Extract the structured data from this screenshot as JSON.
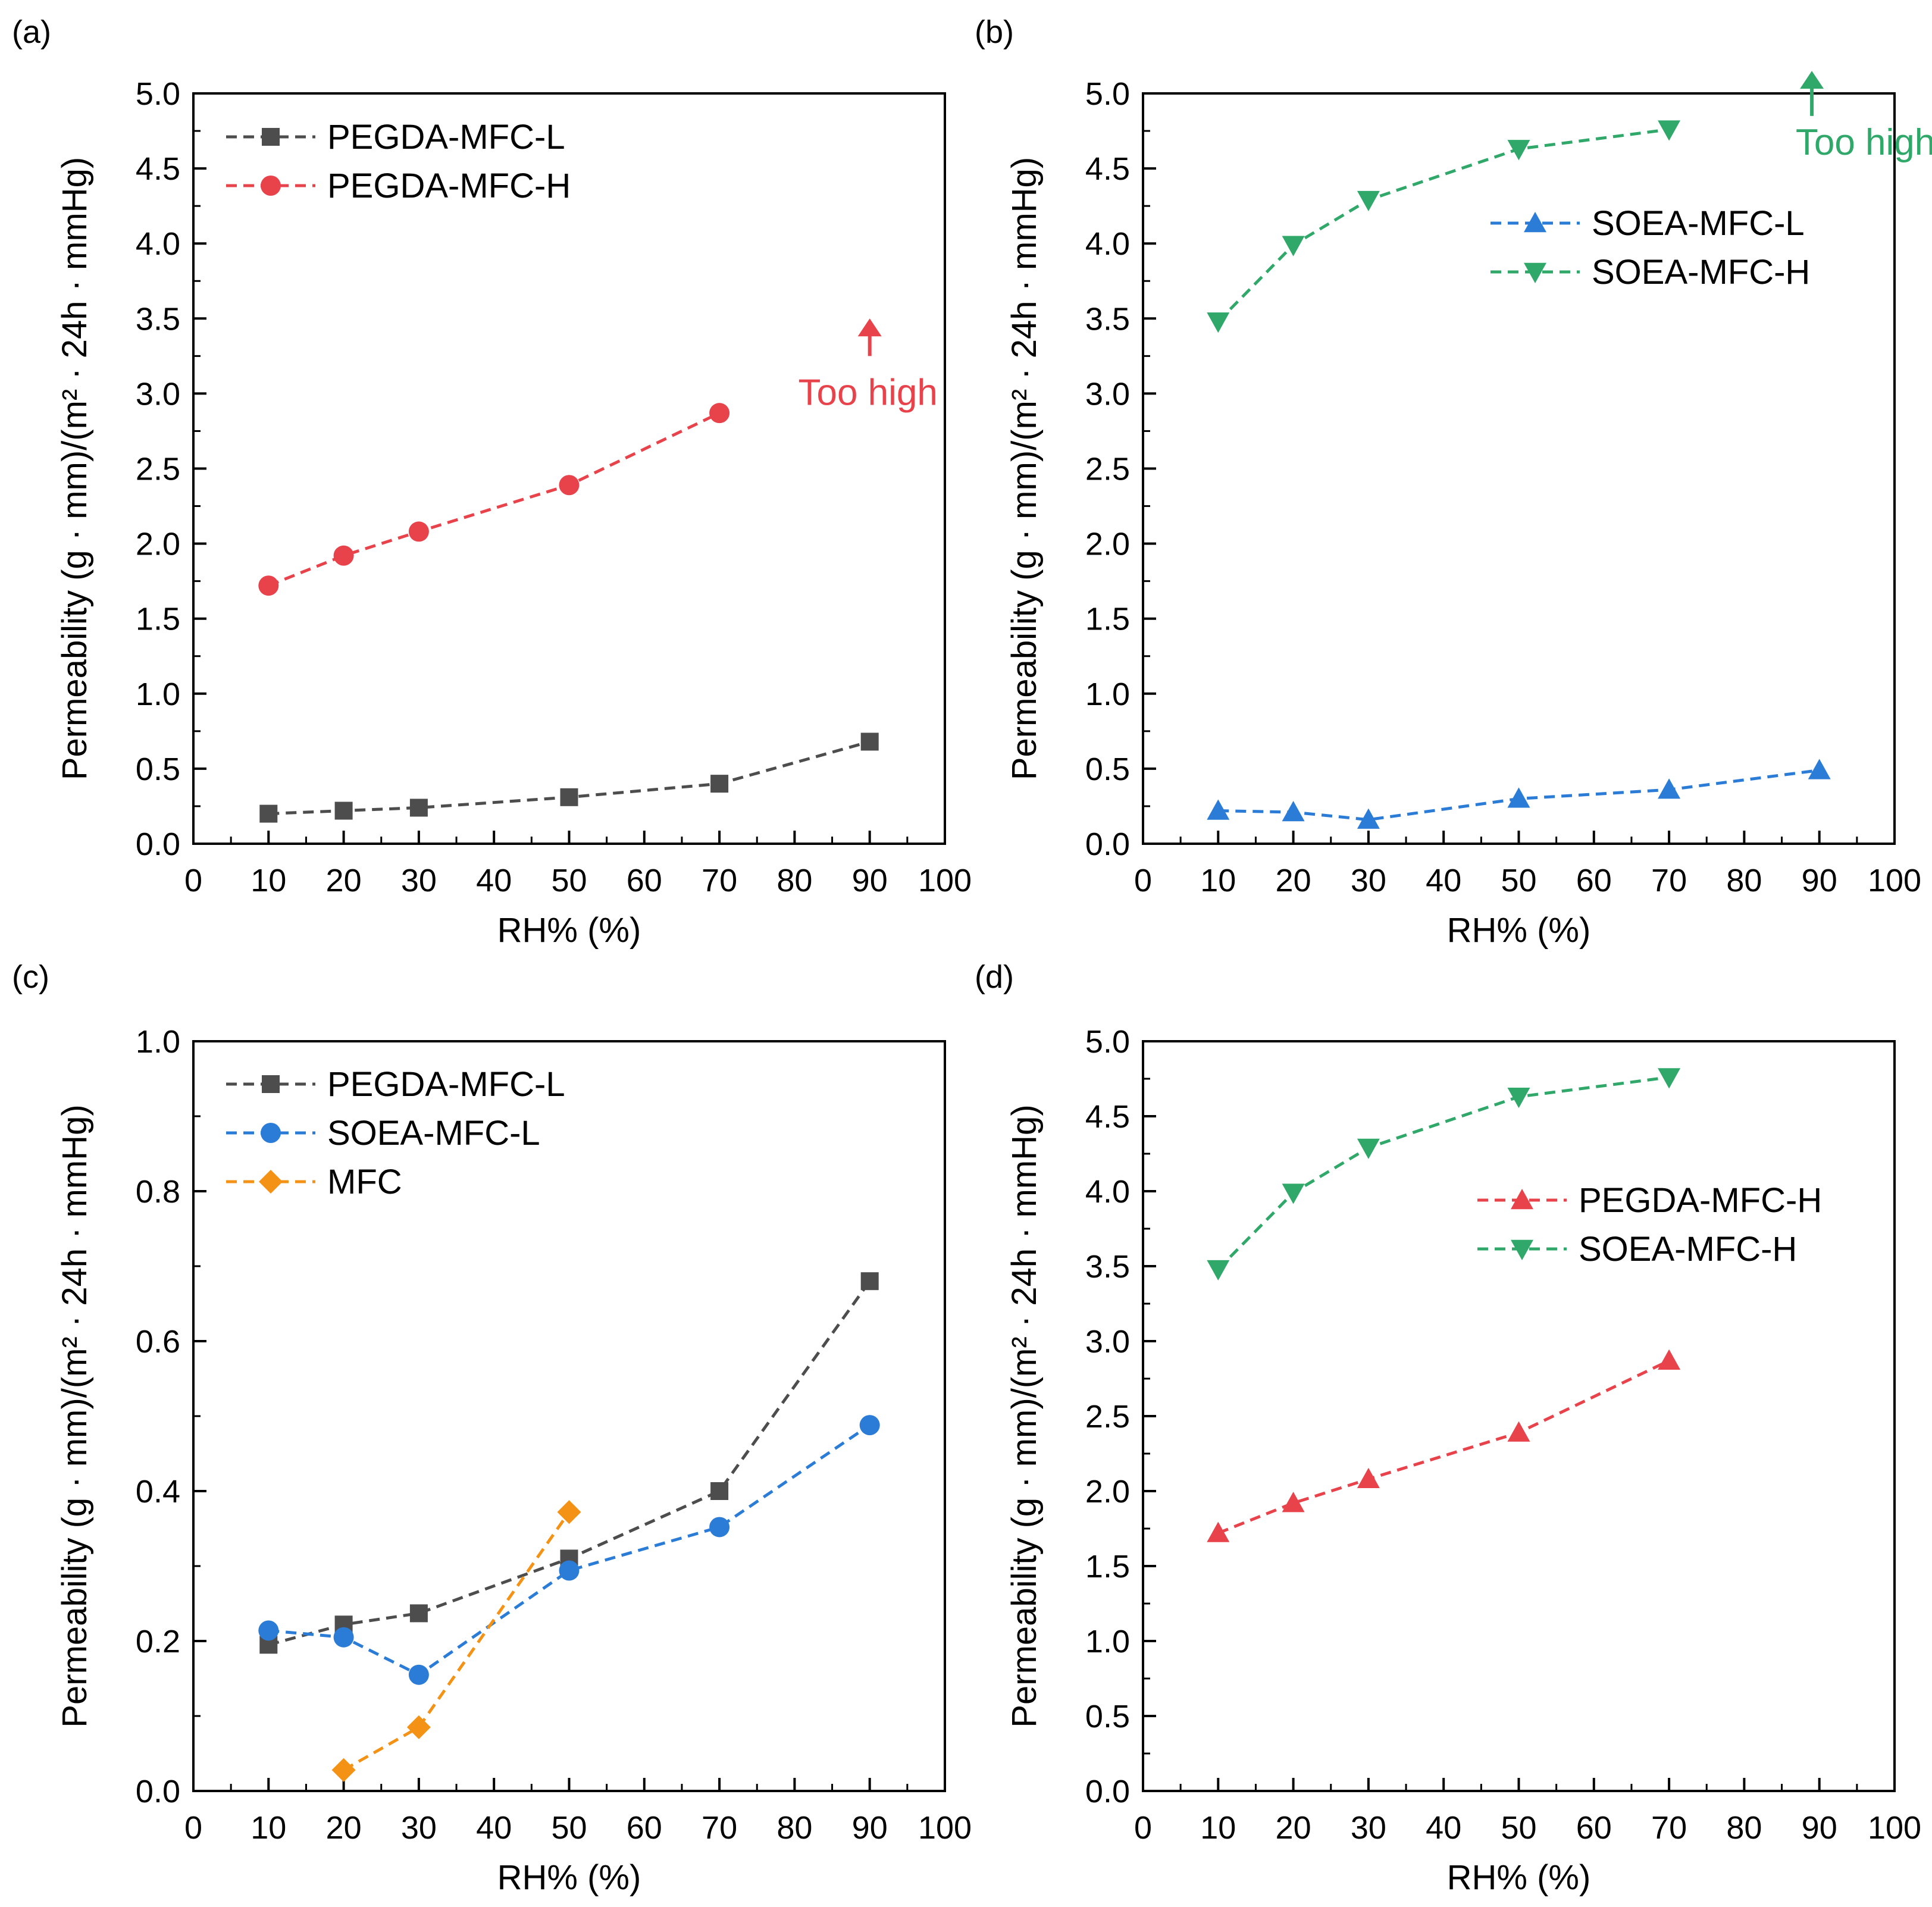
{
  "colors": {
    "black": "#000000",
    "gray": "#4d4d4d",
    "red": "#e8434b",
    "blue": "#2b7cd6",
    "green": "#2fa869",
    "orange": "#f39214"
  },
  "chart_data": [
    {
      "panel": "(a)",
      "type": "line",
      "xlabel": "RH% (%)",
      "ylabel": "Permeability (g · mm)/(m² · 24h · mmHg)",
      "xlim": [
        0,
        100
      ],
      "ylim": [
        0,
        5.0
      ],
      "xticks": [
        "0",
        "10",
        "20",
        "30",
        "40",
        "50",
        "60",
        "70",
        "80",
        "90",
        "100"
      ],
      "yticks": [
        "0.0",
        "0.5",
        "1.0",
        "1.5",
        "2.0",
        "2.5",
        "3.0",
        "3.5",
        "4.0",
        "4.5",
        "5.0"
      ],
      "legend_position": "top-left",
      "series": [
        {
          "name": "PEGDA-MFC-L",
          "marker": "square",
          "color": "#4d4d4d",
          "x": [
            10,
            20,
            30,
            50,
            70,
            90
          ],
          "values": [
            0.2,
            0.22,
            0.24,
            0.31,
            0.4,
            0.68
          ]
        },
        {
          "name": "PEGDA-MFC-H",
          "marker": "circle",
          "color": "#e8434b",
          "x": [
            10,
            20,
            30,
            50,
            70
          ],
          "values": [
            1.72,
            1.92,
            2.08,
            2.39,
            2.87
          ]
        }
      ],
      "annotation": {
        "text": "Too high",
        "color": "#e8434b",
        "at_x": 90,
        "arrow_from": 3.25,
        "arrow_to": 3.5
      }
    },
    {
      "panel": "(b)",
      "type": "line",
      "xlabel": "RH% (%)",
      "ylabel": "Permeability (g · mm)/(m² · 24h · mmHg)",
      "xlim": [
        0,
        100
      ],
      "ylim": [
        0,
        5.0
      ],
      "xticks": [
        "0",
        "10",
        "20",
        "30",
        "40",
        "50",
        "60",
        "70",
        "80",
        "90",
        "100"
      ],
      "yticks": [
        "0.0",
        "0.5",
        "1.0",
        "1.5",
        "2.0",
        "2.5",
        "3.0",
        "3.5",
        "4.0",
        "4.5",
        "5.0"
      ],
      "legend_position": "upper-right",
      "series": [
        {
          "name": "SOEA-MFC-L",
          "marker": "triangle-up",
          "color": "#2b7cd6",
          "x": [
            10,
            20,
            30,
            50,
            70,
            90
          ],
          "values": [
            0.22,
            0.21,
            0.16,
            0.3,
            0.36,
            0.49
          ]
        },
        {
          "name": "SOEA-MFC-H",
          "marker": "triangle-down",
          "color": "#2fa869",
          "x": [
            10,
            20,
            30,
            50,
            70
          ],
          "values": [
            3.48,
            3.99,
            4.29,
            4.63,
            4.76
          ]
        }
      ],
      "annotation": {
        "text": "Too high",
        "color": "#2fa869",
        "at_x": 89,
        "arrow_from": 4.85,
        "arrow_to": 5.15
      }
    },
    {
      "panel": "(c)",
      "type": "line",
      "xlabel": "RH% (%)",
      "ylabel": "Permeability (g · mm)/(m² · 24h · mmHg)",
      "xlim": [
        0,
        100
      ],
      "ylim": [
        0,
        1.0
      ],
      "xticks": [
        "0",
        "10",
        "20",
        "30",
        "40",
        "50",
        "60",
        "70",
        "80",
        "90",
        "100"
      ],
      "yticks": [
        "0.0",
        "0.2",
        "0.4",
        "0.6",
        "0.8",
        "1.0"
      ],
      "legend_position": "top-left",
      "series": [
        {
          "name": "PEGDA-MFC-L",
          "marker": "square",
          "color": "#4d4d4d",
          "x": [
            10,
            20,
            30,
            50,
            70,
            90
          ],
          "values": [
            0.195,
            0.222,
            0.237,
            0.31,
            0.4,
            0.68
          ]
        },
        {
          "name": "SOEA-MFC-L",
          "marker": "circle",
          "color": "#2b7cd6",
          "x": [
            10,
            20,
            30,
            50,
            70,
            90
          ],
          "values": [
            0.214,
            0.205,
            0.155,
            0.294,
            0.352,
            0.488
          ]
        },
        {
          "name": "MFC",
          "marker": "diamond",
          "color": "#f39214",
          "x": [
            20,
            30,
            50
          ],
          "values": [
            0.028,
            0.085,
            0.372
          ]
        }
      ]
    },
    {
      "panel": "(d)",
      "type": "line",
      "xlabel": "RH% (%)",
      "ylabel": "Permeability (g · mm)/(m² · 24h · mmHg)",
      "xlim": [
        0,
        100
      ],
      "ylim": [
        0,
        5.0
      ],
      "xticks": [
        "0",
        "10",
        "20",
        "30",
        "40",
        "50",
        "60",
        "70",
        "80",
        "90",
        "100"
      ],
      "yticks": [
        "0.0",
        "0.5",
        "1.0",
        "1.5",
        "2.0",
        "2.5",
        "3.0",
        "3.5",
        "4.0",
        "4.5",
        "5.0"
      ],
      "legend_position": "upper-right",
      "series": [
        {
          "name": "PEGDA-MFC-H",
          "marker": "triangle-up",
          "color": "#e8434b",
          "x": [
            10,
            20,
            30,
            50,
            70
          ],
          "values": [
            1.72,
            1.92,
            2.08,
            2.39,
            2.87
          ]
        },
        {
          "name": "SOEA-MFC-H",
          "marker": "triangle-down",
          "color": "#2fa869",
          "x": [
            10,
            20,
            30,
            50,
            70
          ],
          "values": [
            3.48,
            3.99,
            4.29,
            4.63,
            4.76
          ]
        }
      ]
    }
  ]
}
